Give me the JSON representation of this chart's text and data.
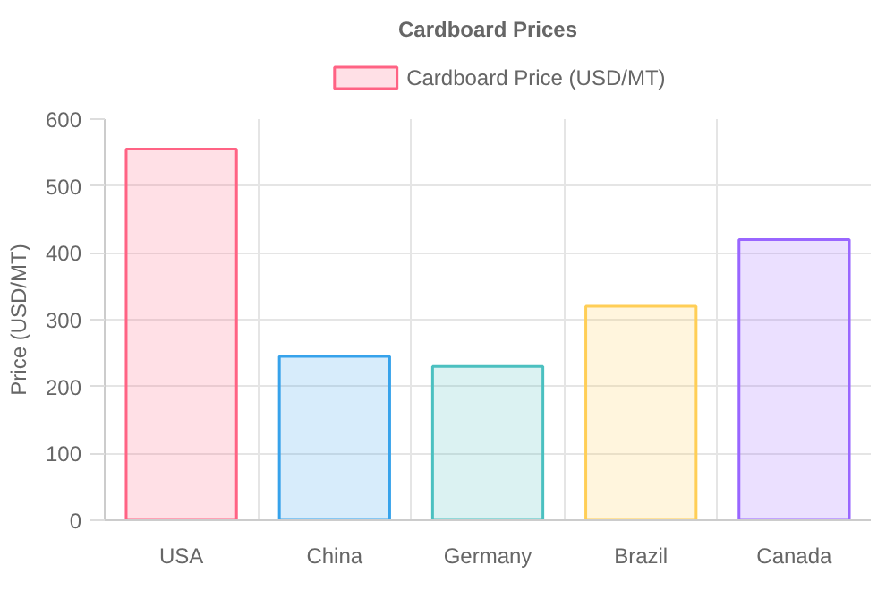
{
  "chart_data": {
    "type": "bar",
    "title": "Cardboard Prices",
    "ylabel": "Price (USD/MT)",
    "categories": [
      "USA",
      "China",
      "Germany",
      "Brazil",
      "Canada"
    ],
    "series": [
      {
        "name": "Cardboard Price (USD/MT)",
        "values": [
          555,
          245,
          230,
          320,
          420
        ],
        "colors": [
          "#ff6384",
          "#36a2eb",
          "#4bc0c0",
          "#ffce56",
          "#9966ff"
        ]
      }
    ],
    "ylim": [
      0,
      600
    ],
    "yticks": [
      0,
      100,
      200,
      300,
      400,
      500,
      600
    ],
    "grid": true,
    "legend": "top"
  }
}
